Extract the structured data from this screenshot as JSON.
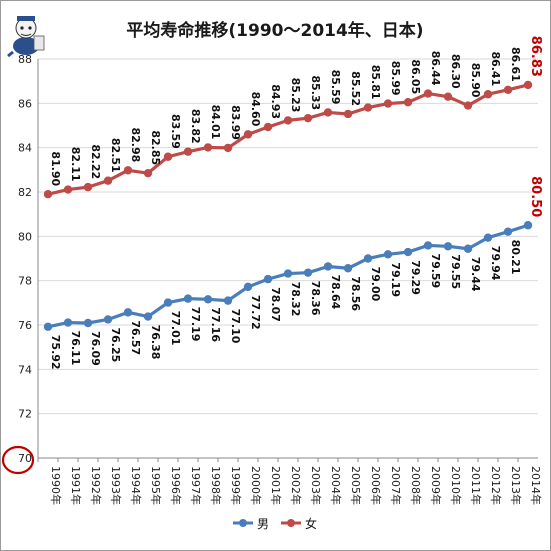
{
  "chart_data": {
    "type": "line",
    "title": "平均寿命推移(1990～2014年、日本)",
    "categories": [
      "1990年",
      "1991年",
      "1992年",
      "1993年",
      "1994年",
      "1995年",
      "1996年",
      "1997年",
      "1998年",
      "1999年",
      "2000年",
      "2001年",
      "2002年",
      "2003年",
      "2004年",
      "2005年",
      "2006年",
      "2007年",
      "2008年",
      "2009年",
      "2010年",
      "2011年",
      "2012年",
      "2013年",
      "2014年"
    ],
    "series": [
      {
        "name": "男",
        "color": "#4a7ebb",
        "values": [
          75.92,
          76.11,
          76.09,
          76.25,
          76.57,
          76.38,
          77.01,
          77.19,
          77.16,
          77.1,
          77.72,
          78.07,
          78.32,
          78.36,
          78.64,
          78.56,
          79.0,
          79.19,
          79.29,
          79.59,
          79.55,
          79.44,
          79.94,
          80.21,
          80.5
        ]
      },
      {
        "name": "女",
        "color": "#be4b48",
        "values": [
          81.9,
          82.11,
          82.22,
          82.51,
          82.98,
          82.85,
          83.59,
          83.82,
          84.01,
          83.99,
          84.6,
          84.93,
          85.23,
          85.33,
          85.59,
          85.52,
          85.81,
          85.99,
          86.05,
          86.44,
          86.3,
          85.9,
          86.41,
          86.61,
          86.83
        ]
      }
    ],
    "ylim": [
      70,
      88
    ],
    "yticks": [
      70,
      72,
      74,
      76,
      78,
      80,
      82,
      84,
      86,
      88
    ],
    "grid": true,
    "legend": "bottom",
    "emphasized_last_labels": {
      "男": "80.50",
      "女": "86.83"
    },
    "emphasis_color": "#c00000"
  }
}
